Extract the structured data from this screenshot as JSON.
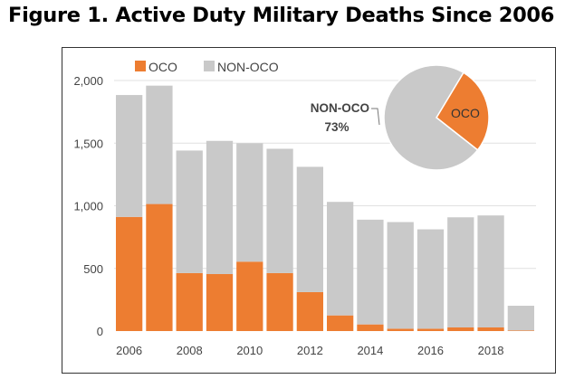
{
  "title": "Figure 1. Active Duty Military Deaths Since 2006",
  "chart_data": [
    {
      "type": "bar",
      "stacked": true,
      "categories": [
        "2006",
        "2007",
        "2008",
        "2009",
        "2010",
        "2011",
        "2012",
        "2013",
        "2014",
        "2015",
        "2016",
        "2017",
        "2018",
        "2019"
      ],
      "x_tick_labels": [
        "2006",
        "2008",
        "2010",
        "2012",
        "2014",
        "2016",
        "2018"
      ],
      "series": [
        {
          "name": "OCO",
          "color": "#ED7D31",
          "values": [
            911,
            1014,
            463,
            455,
            554,
            463,
            311,
            125,
            53,
            19,
            19,
            29,
            29,
            5
          ]
        },
        {
          "name": "NON-OCO",
          "color": "#C9C9C9",
          "values": [
            973,
            945,
            978,
            1063,
            945,
            992,
            1000,
            906,
            836,
            851,
            793,
            879,
            894,
            197
          ]
        }
      ],
      "ylim": [
        0,
        2000
      ],
      "y_tick_labels": [
        "0",
        "500",
        "1,000",
        "1,500",
        "2,000"
      ],
      "grid": true,
      "legend": "top-left"
    },
    {
      "type": "pie",
      "slices": [
        {
          "name": "OCO",
          "label": "OCO",
          "value": 27,
          "color": "#ED7D31"
        },
        {
          "name": "NON-OCO",
          "label": "NON-OCO",
          "value": 73,
          "value_label": "73%",
          "color": "#C9C9C9"
        }
      ]
    }
  ]
}
